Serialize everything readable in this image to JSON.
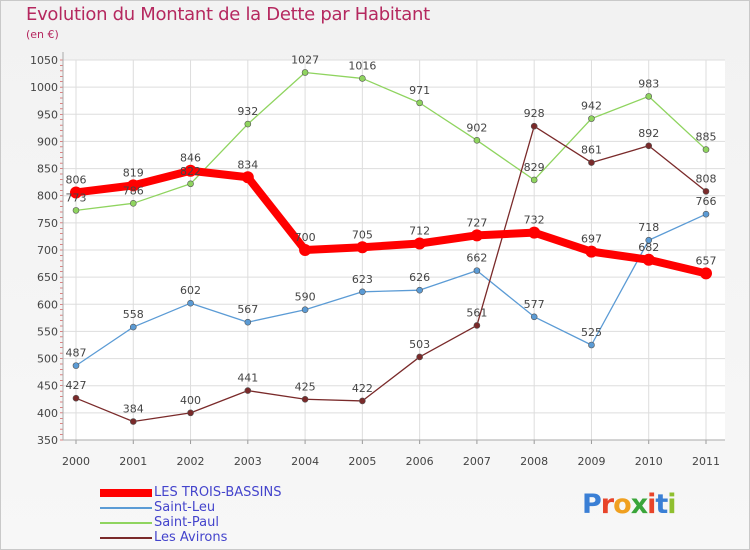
{
  "title": "Evolution du Montant de la Dette par Habitant",
  "unit_label": "(en €)",
  "logo_text": "Proxiti",
  "colors": {
    "title": "#b5285f",
    "axis_text": "#444444",
    "grid": "#dddddd",
    "legend_text": "#4444cc"
  },
  "chart_data": {
    "type": "line",
    "title": "Evolution du Montant de la Dette par Habitant",
    "ylabel": "(en €)",
    "xlabel": "",
    "x": [
      "2000",
      "2001",
      "2002",
      "2003",
      "2004",
      "2005",
      "2006",
      "2007",
      "2008",
      "2009",
      "2010",
      "2011"
    ],
    "ylim": [
      350,
      1050
    ],
    "yticks": [
      350,
      400,
      450,
      500,
      550,
      600,
      650,
      700,
      750,
      800,
      850,
      900,
      950,
      1000,
      1050
    ],
    "grid": true,
    "legend_position": "bottom-left",
    "series": [
      {
        "name": "LES TROIS-BASSINS",
        "color": "#ff0000",
        "bold": true,
        "values": [
          806,
          819,
          846,
          834,
          700,
          705,
          712,
          727,
          732,
          697,
          682,
          657
        ]
      },
      {
        "name": "Saint-Leu",
        "color": "#5b9bd5",
        "bold": false,
        "values": [
          487,
          558,
          602,
          567,
          590,
          623,
          626,
          662,
          577,
          525,
          718,
          766
        ]
      },
      {
        "name": "Saint-Paul",
        "color": "#8fd45f",
        "bold": false,
        "values": [
          773,
          786,
          822,
          932,
          1027,
          1016,
          971,
          902,
          829,
          942,
          983,
          885
        ]
      },
      {
        "name": "Les Avirons",
        "color": "#7a2a2a",
        "bold": false,
        "values": [
          427,
          384,
          400,
          441,
          425,
          422,
          503,
          561,
          928,
          861,
          892,
          808
        ]
      }
    ]
  }
}
